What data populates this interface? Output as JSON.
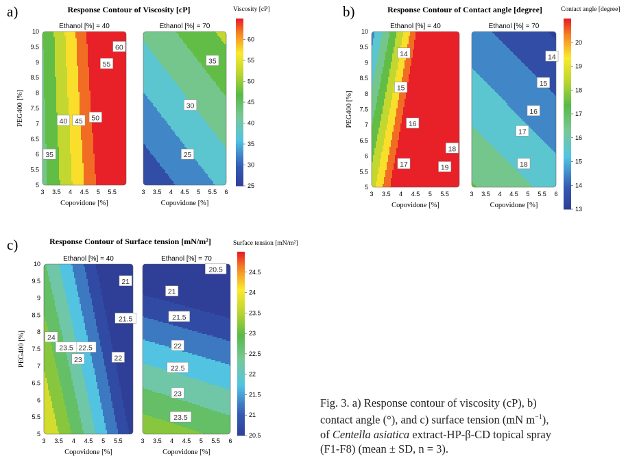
{
  "caption": {
    "line1": "Fig. 3. a) Response contour of viscosity (cP), b)",
    "line2a": "contact angle (°), and c) surface tension (mN m",
    "line2sup": "−1",
    "line2b": "),",
    "line3a": "of ",
    "line3italic": "Centella asiatica",
    "line3b": " extract-HP-β-CD topical spray",
    "line4": "(F1-F8) (mean ± SD, n = 3)."
  },
  "chart_data": [
    {
      "type": "contour",
      "panel_label": "a)",
      "title": "Response Contour of Viscosity [cP]",
      "xlabel": "Copovidone [%]",
      "ylabel": "PEG400 [%]",
      "colorbar_label": "Viscosity [cP]",
      "colorbar_range": [
        25,
        65
      ],
      "colorbar_ticks": [
        25,
        30,
        35,
        40,
        45,
        50,
        55,
        60
      ],
      "xlim": [
        3,
        6
      ],
      "ylim": [
        5,
        10
      ],
      "x_ticks": [
        "3",
        "3.5",
        "4",
        "4.5",
        "5",
        "5.5"
      ],
      "y_ticks": [
        "5",
        "5.5",
        "6",
        "6.5",
        "7",
        "7.5",
        "8",
        "8.5",
        "9",
        "9.5",
        "10"
      ],
      "subplots": [
        {
          "label": "Ethanol [%] = 40",
          "model": {
            "c": 16.2,
            "a": 7.5,
            "b": -0.55,
            "c2": 0.3,
            "xy": 0.3,
            "y2": 0
          },
          "contour_labels": [
            {
              "x": 3.25,
              "y": 6.0,
              "value": "35"
            },
            {
              "x": 3.75,
              "y": 7.1,
              "value": "40"
            },
            {
              "x": 4.3,
              "y": 7.1,
              "value": "45"
            },
            {
              "x": 4.9,
              "y": 7.2,
              "value": "50"
            },
            {
              "x": 5.3,
              "y": 8.95,
              "value": "55"
            },
            {
              "x": 5.75,
              "y": 9.5,
              "value": "60"
            }
          ]
        },
        {
          "label": "Ethanol [%] = 70",
          "x_ticks_extra": "6",
          "model": {
            "c": 0.4,
            "a": 3.5,
            "b": 3.0,
            "c2": 0,
            "xy": 0,
            "y2": 0
          },
          "contour_labels": [
            {
              "x": 4.6,
              "y": 6.0,
              "value": "25"
            },
            {
              "x": 4.7,
              "y": 7.6,
              "value": "30"
            },
            {
              "x": 5.5,
              "y": 9.05,
              "value": "35"
            }
          ]
        }
      ]
    },
    {
      "type": "contour",
      "panel_label": "b)",
      "title": "Response Contour of Contact angle [degree]",
      "xlabel": "Copovidone [%]",
      "ylabel": "PEG400 [%]",
      "colorbar_label": "Contact angle [degree]",
      "colorbar_range": [
        13,
        21
      ],
      "colorbar_ticks": [
        13,
        14,
        15,
        16,
        17,
        18,
        19,
        20
      ],
      "xlim": [
        3,
        6
      ],
      "ylim": [
        5,
        10
      ],
      "x_ticks": [
        "3",
        "3.5",
        "4",
        "4.5",
        "5",
        "5.5"
      ],
      "y_ticks": [
        "5",
        "5.5",
        "6",
        "6.5",
        "7",
        "7.5",
        "8",
        "8.5",
        "9",
        "9.5",
        "10"
      ],
      "subplots": [
        {
          "label": "Ethanol [%] = 40",
          "model": {
            "c": 14.6,
            "a": 1.6,
            "b": -0.8,
            "c2": 0.35,
            "xy": 0,
            "y2": 0
          },
          "contour_labels": [
            {
              "x": 4.1,
              "y": 9.3,
              "value": "14"
            },
            {
              "x": 4.0,
              "y": 8.2,
              "value": "15"
            },
            {
              "x": 4.4,
              "y": 7.05,
              "value": "16"
            },
            {
              "x": 4.1,
              "y": 5.75,
              "value": "17"
            },
            {
              "x": 5.75,
              "y": 6.25,
              "value": "18"
            },
            {
              "x": 5.5,
              "y": 5.65,
              "value": "19"
            }
          ]
        },
        {
          "label": "Ethanol [%] = 70",
          "x_ticks_extra": "6",
          "model": {
            "c": 21.35,
            "a": -0.5,
            "b": -0.55,
            "c2": 0,
            "xy": 0,
            "y2": 0
          },
          "contour_labels": [
            {
              "x": 5.85,
              "y": 9.2,
              "value": "14"
            },
            {
              "x": 5.55,
              "y": 8.35,
              "value": "15"
            },
            {
              "x": 5.2,
              "y": 7.45,
              "value": "16"
            },
            {
              "x": 4.8,
              "y": 6.8,
              "value": "17"
            },
            {
              "x": 4.85,
              "y": 5.75,
              "value": "18"
            }
          ]
        }
      ]
    },
    {
      "type": "contour",
      "panel_label": "c)",
      "title": "Response Contour of Surface tension [mN/m²]",
      "xlabel": "Copovidone [%]",
      "ylabel": "PEG400 [%]",
      "colorbar_label": "Surface tension [mN/m²]",
      "colorbar_range": [
        20.5,
        25
      ],
      "colorbar_ticks": [
        20.5,
        21,
        21.5,
        22,
        22.5,
        23,
        23.5,
        24,
        24.5
      ],
      "xlim": [
        3,
        6
      ],
      "ylim": [
        5,
        10
      ],
      "x_ticks": [
        "3",
        "3.5",
        "4",
        "4.5",
        "5",
        "5.5"
      ],
      "y_ticks": [
        "5",
        "5.5",
        "6",
        "6.5",
        "7",
        "7.5",
        "8",
        "8.5",
        "9",
        "9.5",
        "10"
      ],
      "subplots": [
        {
          "label": "Ethanol [%] = 40",
          "model": {
            "c": 28.42,
            "a": -0.8,
            "b": -0.3,
            "c2": -0.05,
            "xy": 0,
            "y2": 0
          },
          "contour_labels": [
            {
              "x": 5.75,
              "y": 9.5,
              "value": "21"
            },
            {
              "x": 5.75,
              "y": 8.4,
              "value": "21.5"
            },
            {
              "x": 4.4,
              "y": 7.55,
              "value": "22.5"
            },
            {
              "x": 5.5,
              "y": 7.25,
              "value": "22"
            },
            {
              "x": 3.25,
              "y": 7.85,
              "value": "24"
            },
            {
              "x": 3.75,
              "y": 7.55,
              "value": "23.5"
            },
            {
              "x": 4.15,
              "y": 7.2,
              "value": "23"
            }
          ]
        },
        {
          "label": "Ethanol [%] = 70",
          "x_ticks_extra": "6",
          "model": {
            "c": 26.52,
            "a": -0.18,
            "b": -0.42,
            "c2": 0,
            "xy": 0,
            "y2": -0.02
          },
          "contour_labels": [
            {
              "x": 5.5,
              "y": 9.85,
              "value": "20.5"
            },
            {
              "x": 4.0,
              "y": 9.2,
              "value": "21"
            },
            {
              "x": 4.25,
              "y": 8.45,
              "value": "21.5"
            },
            {
              "x": 4.2,
              "y": 7.6,
              "value": "22"
            },
            {
              "x": 4.2,
              "y": 6.95,
              "value": "22.5"
            },
            {
              "x": 4.2,
              "y": 6.2,
              "value": "23"
            },
            {
              "x": 4.3,
              "y": 5.5,
              "value": "23.5"
            }
          ]
        }
      ]
    }
  ]
}
